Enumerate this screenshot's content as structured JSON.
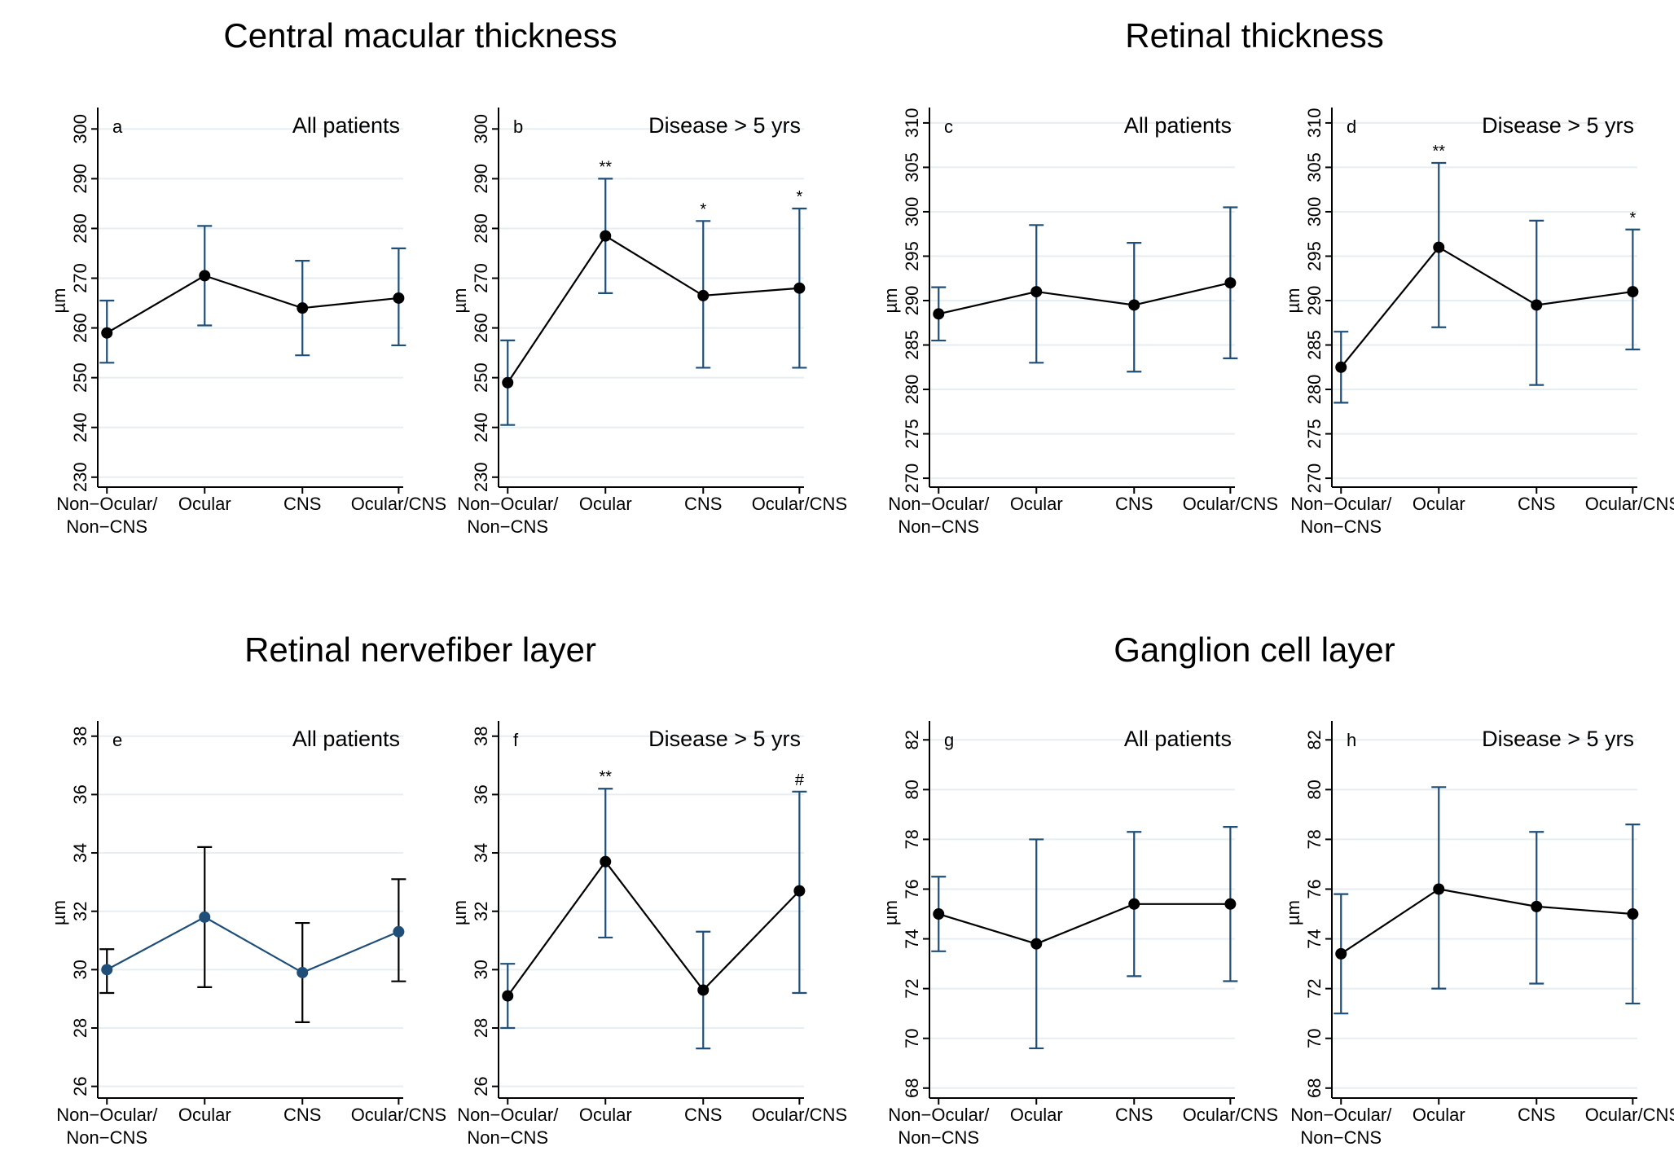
{
  "groups": [
    {
      "title": "Central macular thickness"
    },
    {
      "title": "Retinal thickness"
    },
    {
      "title": "Retinal nervefiber layer"
    },
    {
      "title": "Ganglion cell layer"
    }
  ],
  "chart_data": [
    {
      "type": "line",
      "panel": "a",
      "group": "Central macular thickness",
      "subtitle": "All patients",
      "categories": [
        "Non−Ocular/ Non−CNS",
        "Ocular",
        "CNS",
        "Ocular/CNS"
      ],
      "ylabel": "µm",
      "ylim": [
        228,
        303
      ],
      "yticks": [
        230,
        240,
        250,
        260,
        270,
        280,
        290,
        300
      ],
      "values": [
        259,
        270.5,
        264,
        266
      ],
      "err_low": [
        253,
        260.5,
        254.5,
        256.5
      ],
      "err_high": [
        265.5,
        280.5,
        273.5,
        276
      ],
      "markers": [
        "",
        "",
        "",
        ""
      ],
      "line_color": "#000000",
      "marker_color": "#000000",
      "error_color": "#1f4e79"
    },
    {
      "type": "line",
      "panel": "b",
      "group": "Central macular thickness",
      "subtitle": "Disease > 5 yrs",
      "categories": [
        "Non−Ocular/ Non−CNS",
        "Ocular",
        "CNS",
        "Ocular/CNS"
      ],
      "ylabel": "µm",
      "ylim": [
        228,
        303
      ],
      "yticks": [
        230,
        240,
        250,
        260,
        270,
        280,
        290,
        300
      ],
      "values": [
        249,
        278.5,
        266.5,
        268
      ],
      "err_low": [
        240.5,
        267,
        252,
        252
      ],
      "err_high": [
        257.5,
        290,
        281.5,
        284
      ],
      "markers": [
        "",
        "**",
        "*",
        "*"
      ],
      "line_color": "#000000",
      "marker_color": "#000000",
      "error_color": "#1f4e79"
    },
    {
      "type": "line",
      "panel": "c",
      "group": "Retinal thickness",
      "subtitle": "All patients",
      "categories": [
        "Non−Ocular/ Non−CNS",
        "Ocular",
        "CNS",
        "Ocular/CNS"
      ],
      "ylabel": "µm",
      "ylim": [
        269,
        311
      ],
      "yticks": [
        270,
        275,
        280,
        285,
        290,
        295,
        300,
        305,
        310
      ],
      "values": [
        288.5,
        291,
        289.5,
        292
      ],
      "err_low": [
        285.5,
        283,
        282,
        283.5
      ],
      "err_high": [
        291.5,
        298.5,
        296.5,
        300.5
      ],
      "markers": [
        "",
        "",
        "",
        ""
      ],
      "line_color": "#000000",
      "marker_color": "#000000",
      "error_color": "#1f4e79"
    },
    {
      "type": "line",
      "panel": "d",
      "group": "Retinal thickness",
      "subtitle": "Disease > 5 yrs",
      "categories": [
        "Non−Ocular/ Non−CNS",
        "Ocular",
        "CNS",
        "Ocular/CNS"
      ],
      "ylabel": "µm",
      "ylim": [
        269,
        311
      ],
      "yticks": [
        270,
        275,
        280,
        285,
        290,
        295,
        300,
        305,
        310
      ],
      "values": [
        282.5,
        296,
        289.5,
        291
      ],
      "err_low": [
        278.5,
        287,
        280.5,
        284.5
      ],
      "err_high": [
        286.5,
        305.5,
        299,
        298
      ],
      "markers": [
        "",
        "**",
        "",
        "*"
      ],
      "line_color": "#000000",
      "marker_color": "#000000",
      "error_color": "#1f4e79"
    },
    {
      "type": "line",
      "panel": "e",
      "group": "Retinal nervefiber layer",
      "subtitle": "All patients",
      "categories": [
        "Non−Ocular/ Non−CNS",
        "Ocular",
        "CNS",
        "Ocular/CNS"
      ],
      "ylabel": "µm",
      "ylim": [
        25.6,
        38.3
      ],
      "yticks": [
        26,
        28,
        30,
        32,
        34,
        36,
        38
      ],
      "values": [
        30,
        31.8,
        29.9,
        31.3
      ],
      "err_low": [
        29.2,
        29.4,
        28.2,
        29.6
      ],
      "err_high": [
        30.7,
        34.2,
        31.6,
        33.1
      ],
      "markers": [
        "",
        "",
        "",
        ""
      ],
      "line_color": "#1f4e79",
      "marker_color": "#1f4e79",
      "error_color": "#000000"
    },
    {
      "type": "line",
      "panel": "f",
      "group": "Retinal nervefiber layer",
      "subtitle": "Disease  > 5 yrs",
      "categories": [
        "Non−Ocular/ Non−CNS",
        "Ocular",
        "CNS",
        "Ocular/CNS"
      ],
      "ylabel": "µm",
      "ylim": [
        25.6,
        38.3
      ],
      "yticks": [
        26,
        28,
        30,
        32,
        34,
        36,
        38
      ],
      "values": [
        29.1,
        33.7,
        29.3,
        32.7
      ],
      "err_low": [
        28,
        31.1,
        27.3,
        29.2
      ],
      "err_high": [
        30.2,
        36.2,
        31.3,
        36.1
      ],
      "markers": [
        "",
        "**",
        "",
        "#"
      ],
      "line_color": "#000000",
      "marker_color": "#000000",
      "error_color": "#1f4e79"
    },
    {
      "type": "line",
      "panel": "g",
      "group": "Ganglion cell layer",
      "subtitle": "All patients",
      "categories": [
        "Non−Ocular/ Non−CNS",
        "Ocular",
        "CNS",
        "Ocular/CNS"
      ],
      "ylabel": "µm",
      "ylim": [
        67.6,
        82.5
      ],
      "yticks": [
        68,
        70,
        72,
        74,
        76,
        78,
        80,
        82
      ],
      "values": [
        75,
        73.8,
        75.4,
        75.4
      ],
      "err_low": [
        73.5,
        69.6,
        72.5,
        72.3
      ],
      "err_high": [
        76.5,
        78,
        78.3,
        78.5
      ],
      "markers": [
        "",
        "",
        "",
        ""
      ],
      "line_color": "#000000",
      "marker_color": "#000000",
      "error_color": "#1f4e79"
    },
    {
      "type": "line",
      "panel": "h",
      "group": "Ganglion cell layer",
      "subtitle": "Disease > 5 yrs",
      "categories": [
        "Non−Ocular/ Non−CNS",
        "Ocular",
        "CNS",
        "Ocular/CNS"
      ],
      "ylabel": "µm",
      "ylim": [
        67.6,
        82.5
      ],
      "yticks": [
        68,
        70,
        72,
        74,
        76,
        78,
        80,
        82
      ],
      "values": [
        73.4,
        76,
        75.3,
        75
      ],
      "err_low": [
        71,
        72,
        72.2,
        71.4
      ],
      "err_high": [
        75.8,
        80.1,
        78.3,
        78.6
      ],
      "markers": [
        "",
        "",
        "",
        ""
      ],
      "line_color": "#000000",
      "marker_color": "#000000",
      "error_color": "#1f4e79"
    }
  ]
}
